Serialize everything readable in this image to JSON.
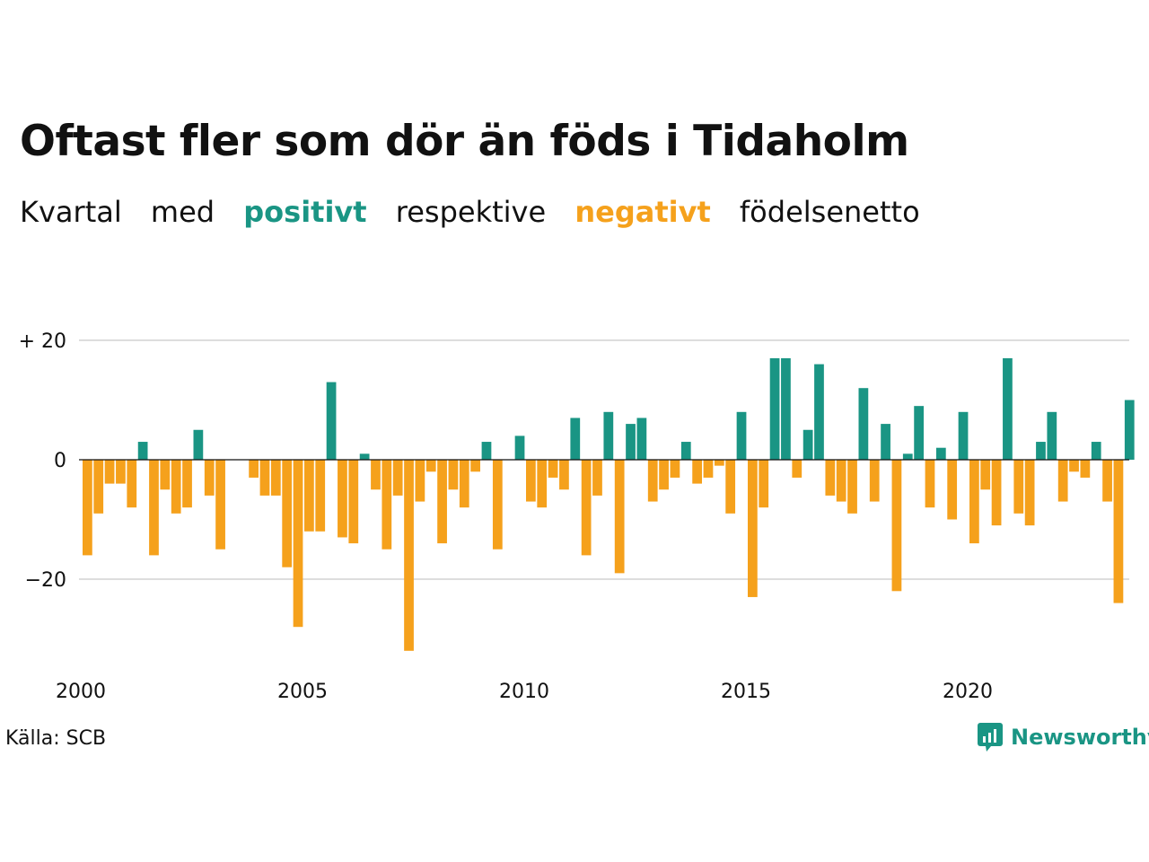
{
  "title": "Oftast fler som dör än föds i Tidaholm",
  "subtitle": {
    "w1": "Kvartal",
    "w2": "med",
    "positive_word": "positivt",
    "w3": "respektive",
    "negative_word": "negativt",
    "w4": "födelsenetto"
  },
  "colors": {
    "positive": "#1a9584",
    "negative": "#f5a11c",
    "grid": "#dddddd",
    "text": "#111111"
  },
  "source": "Källa: SCB",
  "logo": {
    "brand": "Newsworthy",
    "icon": "newsworthy-logo-icon"
  },
  "chart_data": {
    "type": "bar",
    "y_tick_labels": [
      "+ 20",
      "0",
      "−20"
    ],
    "y_ticks": [
      20,
      0,
      -20
    ],
    "ylim": [
      -34,
      20
    ],
    "x_tick_labels": [
      "2000",
      "2005",
      "2010",
      "2015",
      "2020"
    ],
    "x_ticks": [
      2000,
      2005,
      2010,
      2015,
      2020
    ],
    "start_year": 2000,
    "start_quarter": 1,
    "grid": true,
    "values": [
      -16,
      -9,
      -4,
      -4,
      -8,
      3,
      -16,
      -5,
      -9,
      -8,
      5,
      -6,
      -15,
      0,
      0,
      -3,
      -6,
      -6,
      -18,
      -28,
      -12,
      -12,
      13,
      -13,
      -14,
      1,
      -5,
      -15,
      -6,
      -32,
      -7,
      -2,
      -14,
      -5,
      -8,
      -2,
      3,
      -15,
      0,
      4,
      -7,
      -8,
      -3,
      -5,
      7,
      -16,
      -6,
      8,
      -19,
      6,
      7,
      -7,
      -5,
      -3,
      3,
      -4,
      -3,
      -1,
      -9,
      8,
      -23,
      -8,
      17,
      17,
      -3,
      5,
      16,
      -6,
      -7,
      -9,
      12,
      -7,
      6,
      -22,
      1,
      9,
      -8,
      2,
      -10,
      8,
      -14,
      -5,
      -11,
      17,
      -9,
      -11,
      3,
      8,
      -7,
      -2,
      -3,
      3,
      -7,
      -24,
      10
    ]
  }
}
